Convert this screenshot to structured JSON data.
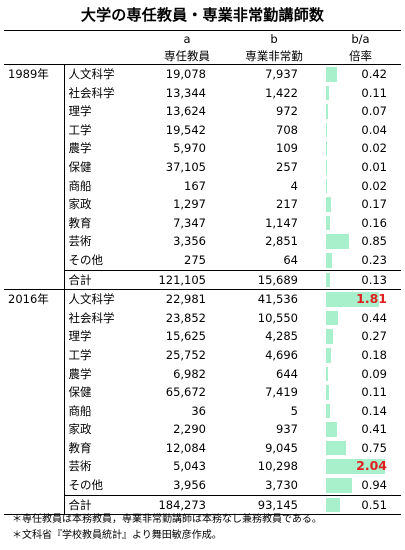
{
  "title": "大学の専任教員・専業非常勤講師数",
  "headers": {
    "col_a_letter": "a",
    "col_b_letter": "b",
    "col_ratio_letter": "b/a",
    "col_a": "専任教員",
    "col_b": "専業非常勤",
    "col_ratio": "倍率"
  },
  "accent_color": "#a8f0cc",
  "highlight_color": "#e02020",
  "sections": [
    {
      "year": "1989年",
      "rows": [
        {
          "cat": "人文科学",
          "a": "19,078",
          "b": "7,937",
          "r": "0.42"
        },
        {
          "cat": "社会科学",
          "a": "13,344",
          "b": "1,422",
          "r": "0.11"
        },
        {
          "cat": "理学",
          "a": "13,624",
          "b": "972",
          "r": "0.07"
        },
        {
          "cat": "工学",
          "a": "19,542",
          "b": "708",
          "r": "0.04"
        },
        {
          "cat": "農学",
          "a": "5,970",
          "b": "109",
          "r": "0.02"
        },
        {
          "cat": "保健",
          "a": "37,105",
          "b": "257",
          "r": "0.01"
        },
        {
          "cat": "商船",
          "a": "167",
          "b": "4",
          "r": "0.02"
        },
        {
          "cat": "家政",
          "a": "1,297",
          "b": "217",
          "r": "0.17"
        },
        {
          "cat": "教育",
          "a": "7,347",
          "b": "1,147",
          "r": "0.16"
        },
        {
          "cat": "芸術",
          "a": "3,356",
          "b": "2,851",
          "r": "0.85"
        },
        {
          "cat": "その他",
          "a": "275",
          "b": "64",
          "r": "0.23"
        }
      ],
      "total": {
        "cat": "合計",
        "a": "121,105",
        "b": "15,689",
        "r": "0.13"
      }
    },
    {
      "year": "2016年",
      "rows": [
        {
          "cat": "人文科学",
          "a": "22,981",
          "b": "41,536",
          "r": "1.81",
          "hi": true
        },
        {
          "cat": "社会科学",
          "a": "23,852",
          "b": "10,550",
          "r": "0.44"
        },
        {
          "cat": "理学",
          "a": "15,625",
          "b": "4,285",
          "r": "0.27"
        },
        {
          "cat": "工学",
          "a": "25,752",
          "b": "4,696",
          "r": "0.18"
        },
        {
          "cat": "農学",
          "a": "6,982",
          "b": "644",
          "r": "0.09"
        },
        {
          "cat": "保健",
          "a": "65,672",
          "b": "7,419",
          "r": "0.11"
        },
        {
          "cat": "商船",
          "a": "36",
          "b": "5",
          "r": "0.14"
        },
        {
          "cat": "家政",
          "a": "2,290",
          "b": "937",
          "r": "0.41"
        },
        {
          "cat": "教育",
          "a": "12,084",
          "b": "9,045",
          "r": "0.75"
        },
        {
          "cat": "芸術",
          "a": "5,043",
          "b": "10,298",
          "r": "2.04",
          "hi": true
        },
        {
          "cat": "その他",
          "a": "3,956",
          "b": "3,730",
          "r": "0.94"
        }
      ],
      "total": {
        "cat": "合計",
        "a": "184,273",
        "b": "93,145",
        "r": "0.51"
      }
    }
  ],
  "notes": [
    "＊専任教員は本務教員，専業非常勤講師は本務なし兼務教員である。",
    "＊文科省『学校教員統計』より舞田敏彦作成。"
  ]
}
